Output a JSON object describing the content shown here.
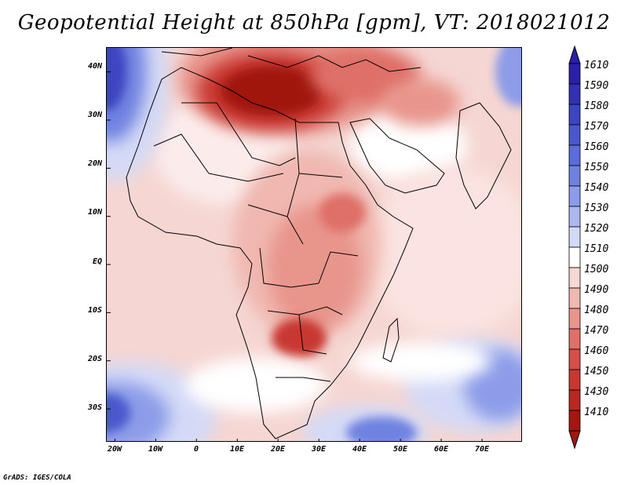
{
  "title": "Geopotential Height at 850hPa [gpm], VT: 2018021012",
  "credit": "GrADS: IGES/COLA",
  "map": {
    "lon_range": [
      -22,
      80
    ],
    "lat_range": [
      -37,
      45
    ],
    "lat_ticks": [
      {
        "value": 40,
        "label": "40N"
      },
      {
        "value": 30,
        "label": "30N"
      },
      {
        "value": 20,
        "label": "20N"
      },
      {
        "value": 10,
        "label": "10N"
      },
      {
        "value": 0,
        "label": "EQ"
      },
      {
        "value": -10,
        "label": "10S"
      },
      {
        "value": -20,
        "label": "20S"
      },
      {
        "value": -30,
        "label": "30S"
      }
    ],
    "lon_ticks": [
      {
        "value": -20,
        "label": "20W"
      },
      {
        "value": -10,
        "label": "10W"
      },
      {
        "value": 0,
        "label": "0"
      },
      {
        "value": 10,
        "label": "10E"
      },
      {
        "value": 20,
        "label": "20E"
      },
      {
        "value": 30,
        "label": "30E"
      },
      {
        "value": 40,
        "label": "40E"
      },
      {
        "value": 50,
        "label": "50E"
      },
      {
        "value": 60,
        "label": "60E"
      },
      {
        "value": 70,
        "label": "70E"
      }
    ]
  },
  "legend": {
    "levels": [
      {
        "label": "1610",
        "color": "#2a1fa8"
      },
      {
        "label": "1590",
        "color": "#3330b2"
      },
      {
        "label": "1580",
        "color": "#3c44c0"
      },
      {
        "label": "1570",
        "color": "#4b58cc"
      },
      {
        "label": "1560",
        "color": "#5c6cd8"
      },
      {
        "label": "1550",
        "color": "#6f82e0"
      },
      {
        "label": "1540",
        "color": "#8c9ce8"
      },
      {
        "label": "1530",
        "color": "#aeb8ef"
      },
      {
        "label": "1520",
        "color": "#d4daf6"
      },
      {
        "label": "1510",
        "color": "#ffffff"
      },
      {
        "label": "1500",
        "color": "#f7d8d4"
      },
      {
        "label": "1490",
        "color": "#f0b8b0"
      },
      {
        "label": "1480",
        "color": "#e8958c"
      },
      {
        "label": "1470",
        "color": "#de7068"
      },
      {
        "label": "1460",
        "color": "#d45048"
      },
      {
        "label": "1450",
        "color": "#c83830"
      },
      {
        "label": "1430",
        "color": "#b82820"
      },
      {
        "label": "1410",
        "color": "#a01810"
      }
    ]
  }
}
